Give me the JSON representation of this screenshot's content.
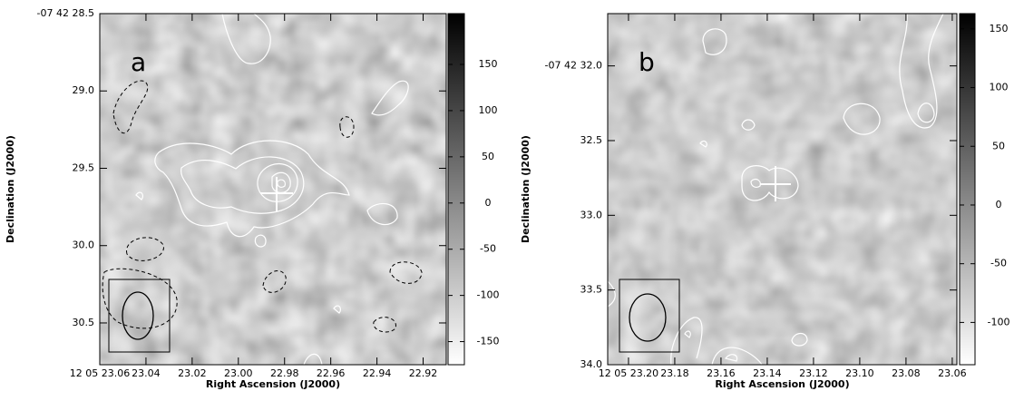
{
  "chart_data": [
    {
      "type": "image",
      "panel_label": "a",
      "xlabel": "Right Ascension (J2000)",
      "ylabel": "Declination (J2000)",
      "xlim": [
        23.06,
        22.91
      ],
      "xticks": [
        {
          "value": 23.06,
          "label": "12 05 23.06"
        },
        23.04,
        23.02,
        {
          "value": 23,
          "label": "23.00"
        },
        22.98,
        22.96,
        22.94,
        22.92
      ],
      "ylim": [
        28.5,
        30.77
      ],
      "yticks": [
        {
          "value": 28.5,
          "label": "-07 42 28.5"
        },
        {
          "value": 29,
          "label": "29.0"
        },
        29.5,
        {
          "value": 30,
          "label": "30.0"
        },
        30.5
      ],
      "clim": [
        -175,
        205
      ],
      "cticks": [
        150,
        100,
        50,
        0,
        -50,
        -100,
        -150
      ]
    },
    {
      "type": "image",
      "panel_label": "b",
      "xlabel": "Right Ascension (J2000)",
      "ylabel": "Declination (J2000)",
      "xlim": [
        23.209,
        23.058
      ],
      "xticks": [
        {
          "value": 23.2,
          "label": "12 05 23.20"
        },
        23.18,
        23.16,
        23.14,
        23.12,
        {
          "value": 23.1,
          "label": "23.10"
        },
        23.08,
        23.06
      ],
      "ylim": [
        31.65,
        34
      ],
      "yticks": [
        {
          "value": 32,
          "label": "-07 42 32.0"
        },
        32.5,
        {
          "value": 33,
          "label": "33.0"
        },
        33.5,
        {
          "value": 34,
          "label": "34.0"
        }
      ],
      "clim": [
        -136,
        163
      ],
      "cticks": [
        150,
        100,
        50,
        0,
        -50,
        -100
      ]
    }
  ]
}
